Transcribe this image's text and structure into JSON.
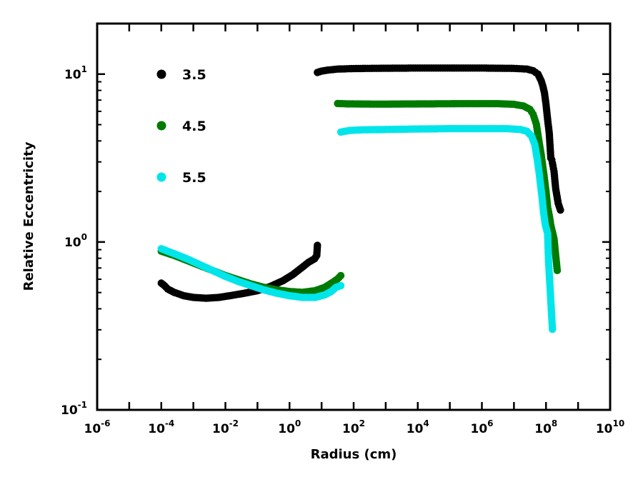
{
  "chart_data": {
    "type": "scatter",
    "title": "",
    "xlabel": "Radius (cm)",
    "ylabel": "Relative Eccentricity",
    "xscale": "log",
    "yscale": "log",
    "xlim": [
      1e-06,
      10000000000.0
    ],
    "ylim": [
      0.1,
      20
    ],
    "legend_position": "top-left",
    "x_tick_labels": [
      {
        "base": "10",
        "exp": "-6"
      },
      {
        "base": "10",
        "exp": "-4"
      },
      {
        "base": "10",
        "exp": "-2"
      },
      {
        "base": "10",
        "exp": "0"
      },
      {
        "base": "10",
        "exp": "2"
      },
      {
        "base": "10",
        "exp": "4"
      },
      {
        "base": "10",
        "exp": "6"
      },
      {
        "base": "10",
        "exp": "8"
      },
      {
        "base": "10",
        "exp": "10"
      }
    ],
    "y_tick_labels": [
      {
        "base": "10",
        "exp": "-1"
      },
      {
        "base": "10",
        "exp": "0"
      },
      {
        "base": "10",
        "exp": "1"
      }
    ],
    "series": [
      {
        "name": "3.5",
        "color": "#000000",
        "inner": [
          [
            -4.0,
            -0.245
          ],
          [
            -3.9,
            -0.26
          ],
          [
            -3.8,
            -0.28
          ],
          [
            -3.6,
            -0.3
          ],
          [
            -3.3,
            -0.32
          ],
          [
            -3.0,
            -0.33
          ],
          [
            -2.6,
            -0.335
          ],
          [
            -2.2,
            -0.33
          ],
          [
            -1.8,
            -0.318
          ],
          [
            -1.4,
            -0.305
          ],
          [
            -1.0,
            -0.29
          ],
          [
            -0.6,
            -0.265
          ],
          [
            -0.2,
            -0.23
          ],
          [
            0.1,
            -0.195
          ],
          [
            0.4,
            -0.15
          ],
          [
            0.6,
            -0.12
          ],
          [
            0.78,
            -0.1
          ],
          [
            0.85,
            -0.08
          ],
          [
            0.87,
            -0.02
          ]
        ],
        "outer": [
          [
            0.87,
            1.01
          ],
          [
            1.0,
            1.018
          ],
          [
            1.2,
            1.024
          ],
          [
            1.5,
            1.03
          ],
          [
            2.0,
            1.033
          ],
          [
            3.0,
            1.035
          ],
          [
            4.0,
            1.036
          ],
          [
            5.0,
            1.036
          ],
          [
            6.0,
            1.036
          ],
          [
            7.0,
            1.034
          ],
          [
            7.4,
            1.03
          ],
          [
            7.6,
            1.02
          ],
          [
            7.75,
            1.0
          ],
          [
            7.85,
            0.96
          ],
          [
            7.9,
            0.93
          ],
          [
            7.95,
            0.89
          ],
          [
            8.0,
            0.82
          ],
          [
            8.05,
            0.73
          ],
          [
            8.1,
            0.65
          ],
          [
            8.15,
            0.5
          ],
          [
            8.18,
            0.49
          ],
          [
            8.2,
            0.47
          ],
          [
            8.25,
            0.42
          ],
          [
            8.3,
            0.32
          ],
          [
            8.38,
            0.23
          ],
          [
            8.45,
            0.19
          ]
        ]
      },
      {
        "name": "4.5",
        "color": "#007a00",
        "inner": [
          [
            -4.0,
            -0.055
          ],
          [
            -3.6,
            -0.08
          ],
          [
            -3.2,
            -0.11
          ],
          [
            -2.8,
            -0.14
          ],
          [
            -2.4,
            -0.17
          ],
          [
            -2.0,
            -0.2
          ],
          [
            -1.6,
            -0.225
          ],
          [
            -1.2,
            -0.25
          ],
          [
            -0.8,
            -0.27
          ],
          [
            -0.4,
            -0.285
          ],
          [
            0.0,
            -0.295
          ],
          [
            0.4,
            -0.3
          ],
          [
            0.8,
            -0.29
          ],
          [
            1.1,
            -0.27
          ],
          [
            1.35,
            -0.24
          ],
          [
            1.5,
            -0.22
          ],
          [
            1.6,
            -0.2
          ]
        ],
        "outer": [
          [
            1.5,
            0.825
          ],
          [
            1.8,
            0.823
          ],
          [
            2.2,
            0.822
          ],
          [
            2.8,
            0.821
          ],
          [
            3.5,
            0.822
          ],
          [
            4.5,
            0.823
          ],
          [
            5.5,
            0.824
          ],
          [
            6.5,
            0.824
          ],
          [
            7.0,
            0.82
          ],
          [
            7.3,
            0.81
          ],
          [
            7.5,
            0.79
          ],
          [
            7.6,
            0.76
          ],
          [
            7.7,
            0.7
          ],
          [
            7.78,
            0.6
          ],
          [
            7.85,
            0.52
          ],
          [
            7.9,
            0.45
          ],
          [
            7.95,
            0.38
          ],
          [
            8.0,
            0.3
          ],
          [
            8.05,
            0.21
          ],
          [
            8.1,
            0.16
          ],
          [
            8.15,
            0.1
          ],
          [
            8.25,
            0.02
          ],
          [
            8.35,
            -0.17
          ]
        ]
      },
      {
        "name": "5.5",
        "color": "#00e5ea",
        "inner": [
          [
            -4.0,
            -0.04
          ],
          [
            -3.6,
            -0.07
          ],
          [
            -3.2,
            -0.1
          ],
          [
            -2.8,
            -0.135
          ],
          [
            -2.4,
            -0.17
          ],
          [
            -2.0,
            -0.205
          ],
          [
            -1.6,
            -0.235
          ],
          [
            -1.2,
            -0.26
          ],
          [
            -0.8,
            -0.285
          ],
          [
            -0.4,
            -0.305
          ],
          [
            0.0,
            -0.32
          ],
          [
            0.4,
            -0.33
          ],
          [
            0.8,
            -0.33
          ],
          [
            1.1,
            -0.315
          ],
          [
            1.3,
            -0.295
          ],
          [
            1.45,
            -0.27
          ],
          [
            1.6,
            -0.26
          ]
        ],
        "outer": [
          [
            1.6,
            0.655
          ],
          [
            1.9,
            0.665
          ],
          [
            2.3,
            0.668
          ],
          [
            3.0,
            0.67
          ],
          [
            4.0,
            0.673
          ],
          [
            5.0,
            0.675
          ],
          [
            6.0,
            0.675
          ],
          [
            6.8,
            0.675
          ],
          [
            7.2,
            0.67
          ],
          [
            7.4,
            0.66
          ],
          [
            7.55,
            0.63
          ],
          [
            7.65,
            0.58
          ],
          [
            7.72,
            0.5
          ],
          [
            7.78,
            0.42
          ],
          [
            7.83,
            0.34
          ],
          [
            7.88,
            0.26
          ],
          [
            7.92,
            0.18
          ],
          [
            7.98,
            0.1
          ],
          [
            8.05,
            0.05
          ],
          [
            8.08,
            -0.12
          ],
          [
            8.2,
            -0.52
          ]
        ]
      }
    ]
  }
}
